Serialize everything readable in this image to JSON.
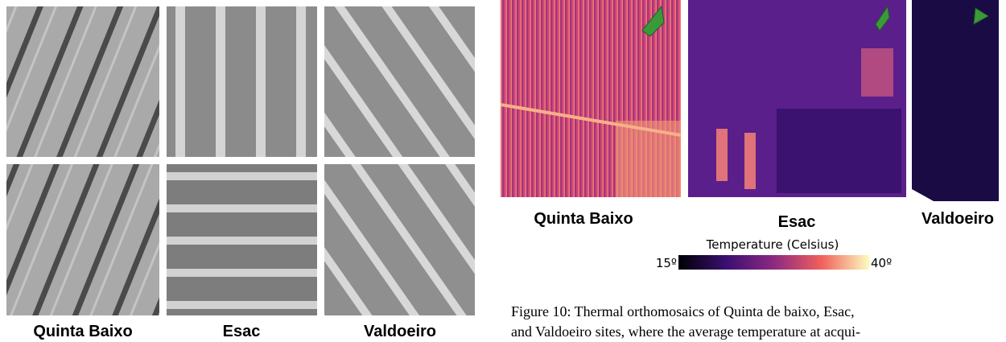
{
  "left_panel": {
    "labels": [
      "Quinta Baixo",
      "Esac",
      "Valdoeiro"
    ]
  },
  "right_panel": {
    "labels": [
      "Quinta Baixo",
      "Esac",
      "Valdoeiro"
    ],
    "colorbar": {
      "title": "Temperature (Celsius)",
      "min_label": "15º",
      "max_label": "40º"
    }
  },
  "caption": {
    "lines": [
      "Figure 10:  Thermal orthomosaics of Quinta de baixo, Esac,",
      "and Valdoeiro sites, where the average temperature at acqui-"
    ]
  }
}
